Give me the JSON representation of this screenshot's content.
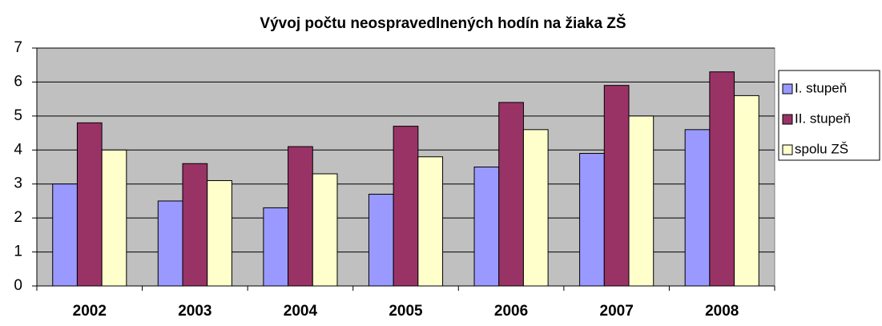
{
  "chart_data": {
    "type": "bar",
    "title": "Vývoj počtu neospravedlnených hodín na žiaka ZŠ",
    "categories": [
      "2002",
      "2003",
      "2004",
      "2005",
      "2006",
      "2007",
      "2008"
    ],
    "series": [
      {
        "name": "I. stupeň",
        "color": "#9999ff",
        "values": [
          3.0,
          2.5,
          2.3,
          2.7,
          3.5,
          3.9,
          4.6
        ]
      },
      {
        "name": "II. stupeň",
        "color": "#993366",
        "values": [
          4.8,
          3.6,
          4.1,
          4.7,
          5.4,
          5.9,
          6.3
        ]
      },
      {
        "name": "spolu ZŠ",
        "color": "#ffffcc",
        "values": [
          4.0,
          3.1,
          3.3,
          3.8,
          4.6,
          5.0,
          5.6
        ]
      }
    ],
    "ylim": [
      0,
      7
    ],
    "yticks": [
      0,
      1,
      2,
      3,
      4,
      5,
      6,
      7
    ],
    "grid": true,
    "plot_background": "#c0c0c0",
    "legend": "right"
  }
}
